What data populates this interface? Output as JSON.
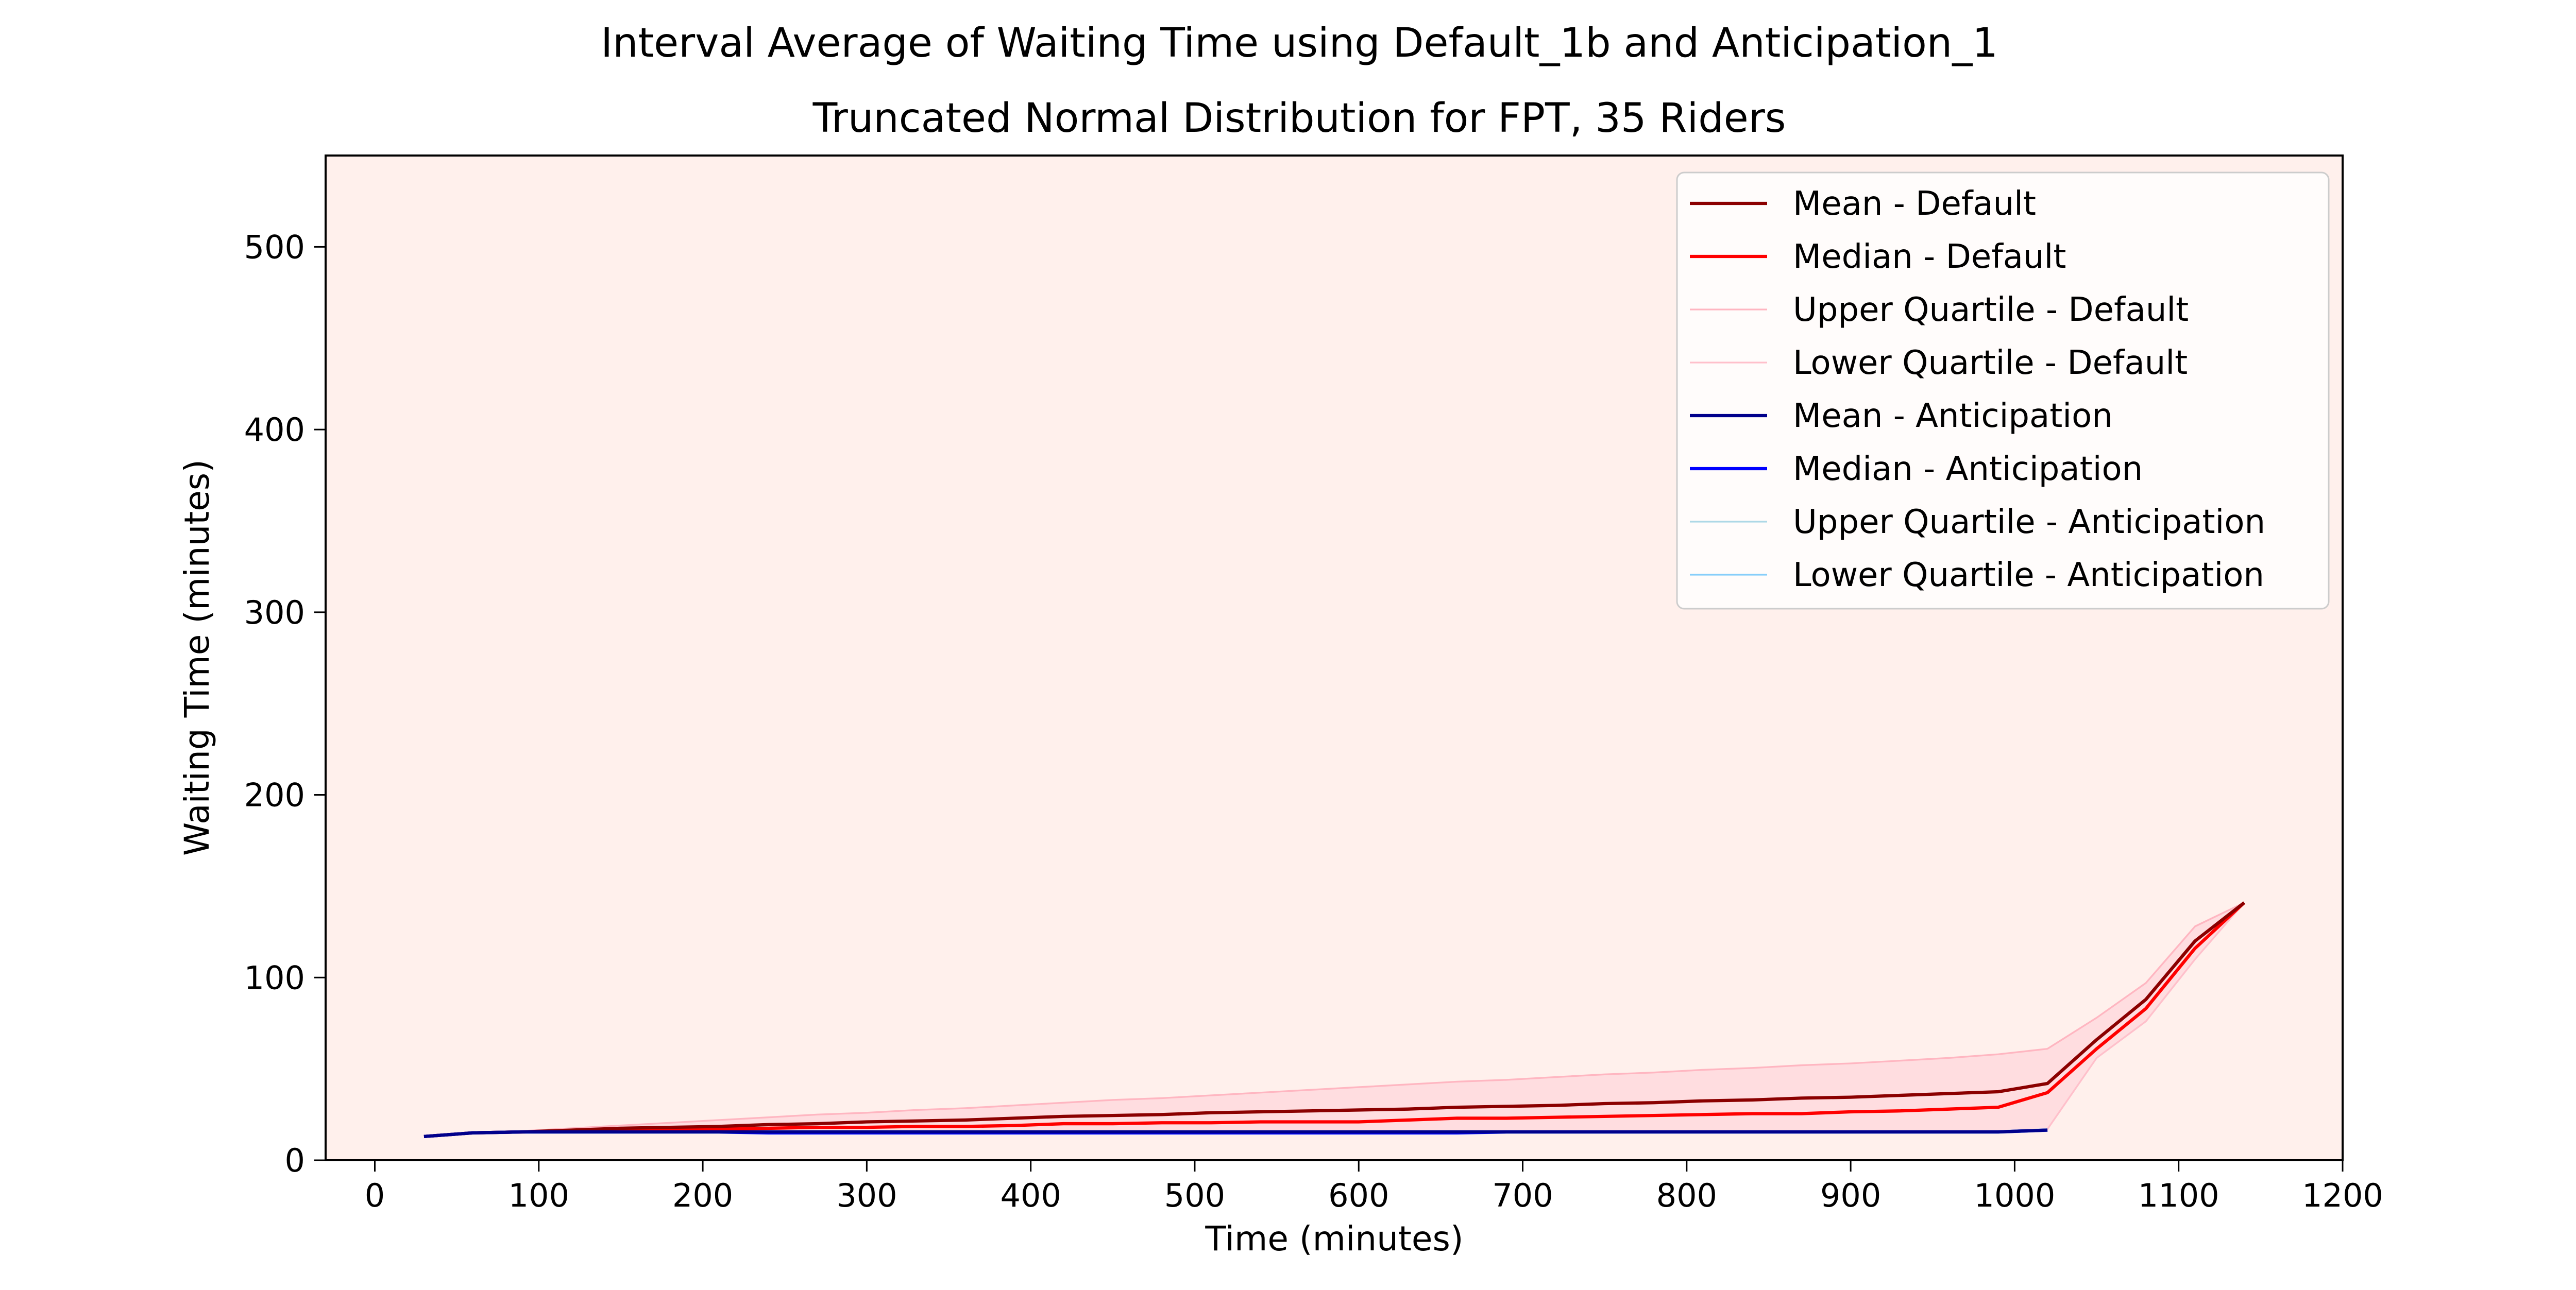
{
  "title": "Interval Average of Waiting Time using Default_1b and Anticipation_1",
  "subtitle": "Truncated Normal Distribution for FPT, 35 Riders",
  "chart_data": {
    "type": "line",
    "title": "Interval Average of Waiting Time using Default_1b and Anticipation_1",
    "subtitle": "Truncated Normal Distribution for FPT, 35 Riders",
    "xlabel": "Time (minutes)",
    "ylabel": "Waiting Time (minutes)",
    "xlim": [
      -30,
      1200
    ],
    "ylim": [
      0,
      550
    ],
    "xticks": [
      0,
      100,
      200,
      300,
      400,
      500,
      600,
      700,
      800,
      900,
      1000,
      1100,
      1200
    ],
    "yticks": [
      0,
      100,
      200,
      300,
      400,
      500
    ],
    "grid": false,
    "legend_position": "upper right",
    "background_color": "#fff0ec",
    "fill_default_color": "#ffdde0",
    "fill_anticipation_color": "#cfe6f5",
    "series": [
      {
        "name": "Mean - Default",
        "color": "#8b0000",
        "width": 1.5,
        "x": [
          30,
          60,
          90,
          120,
          150,
          180,
          210,
          240,
          270,
          300,
          330,
          360,
          390,
          420,
          450,
          480,
          510,
          540,
          570,
          600,
          630,
          660,
          690,
          720,
          750,
          780,
          810,
          840,
          870,
          900,
          930,
          960,
          990,
          1020,
          1050,
          1080,
          1110,
          1140
        ],
        "y": [
          13,
          15,
          15.5,
          16.5,
          17.5,
          18,
          18.5,
          19.5,
          20,
          21,
          21.5,
          22,
          23,
          24,
          24.5,
          25,
          26,
          26.5,
          27,
          27.5,
          28,
          29,
          29.5,
          30,
          31,
          31.5,
          32.5,
          33,
          34,
          34.5,
          35.5,
          36.5,
          37.5,
          42,
          66,
          88,
          120,
          141
        ]
      },
      {
        "name": "Median - Default",
        "color": "#ff0000",
        "width": 1.5,
        "x": [
          30,
          60,
          90,
          120,
          150,
          180,
          210,
          240,
          270,
          300,
          330,
          360,
          390,
          420,
          450,
          480,
          510,
          540,
          570,
          600,
          630,
          660,
          690,
          720,
          750,
          780,
          810,
          840,
          870,
          900,
          930,
          960,
          990,
          1020,
          1050,
          1080,
          1110,
          1140
        ],
        "y": [
          13,
          15,
          15.5,
          16,
          16.5,
          17,
          17,
          17.5,
          18,
          18,
          18.5,
          18.5,
          19,
          20,
          20,
          20.5,
          20.5,
          21,
          21,
          21,
          22,
          23,
          23,
          23.5,
          24,
          24.5,
          25,
          25.5,
          25.5,
          26.5,
          27,
          28,
          29,
          37,
          61,
          83,
          116,
          141
        ]
      },
      {
        "name": "Upper Quartile - Default",
        "color": "#ffb6c1",
        "width": 0.8,
        "x": [
          30,
          60,
          90,
          120,
          150,
          180,
          210,
          240,
          270,
          300,
          330,
          360,
          390,
          420,
          450,
          480,
          510,
          540,
          570,
          600,
          630,
          660,
          690,
          720,
          750,
          780,
          810,
          840,
          870,
          900,
          930,
          960,
          990,
          1020,
          1050,
          1080,
          1110,
          1140
        ],
        "y": [
          13,
          15,
          16,
          17.5,
          19,
          20.5,
          22,
          23.5,
          25,
          26,
          27.5,
          28.5,
          30,
          31.5,
          33,
          34,
          35.5,
          37,
          38.5,
          40,
          41.5,
          43,
          44,
          45.5,
          47,
          48,
          49.5,
          50.5,
          52,
          53,
          54.5,
          56,
          58,
          61,
          78,
          97,
          128,
          141
        ]
      },
      {
        "name": "Lower Quartile - Default",
        "color": "#ffc0cb",
        "width": 0.8,
        "x": [
          30,
          60,
          90,
          120,
          150,
          180,
          210,
          240,
          270,
          300,
          330,
          360,
          390,
          420,
          450,
          480,
          510,
          540,
          570,
          600,
          630,
          660,
          690,
          720,
          750,
          780,
          810,
          840,
          870,
          900,
          930,
          960,
          990,
          1020,
          1050,
          1080,
          1110,
          1140
        ],
        "y": [
          13,
          14.5,
          15,
          15,
          15,
          15,
          15,
          15,
          15,
          15,
          15,
          15,
          15,
          15,
          15,
          15,
          15,
          15,
          15,
          15,
          15,
          15,
          15,
          15,
          15,
          15,
          15,
          15,
          15,
          15,
          15,
          15,
          15,
          17,
          56,
          76,
          110,
          141
        ]
      },
      {
        "name": "Mean - Anticipation",
        "color": "#00008b",
        "width": 1.5,
        "x": [
          30,
          60,
          90,
          120,
          150,
          180,
          210,
          240,
          270,
          300,
          330,
          360,
          390,
          420,
          450,
          480,
          510,
          540,
          570,
          600,
          630,
          660,
          690,
          720,
          750,
          780,
          810,
          840,
          870,
          900,
          930,
          960,
          990,
          1020
        ],
        "y": [
          13,
          15,
          15.5,
          15.5,
          15.5,
          15.5,
          15.5,
          15.5,
          15.5,
          15.5,
          15.5,
          15.5,
          15.5,
          15.5,
          15.5,
          15.5,
          15.5,
          15.5,
          15.5,
          15.5,
          15.5,
          15.5,
          15.5,
          15.5,
          15.5,
          15.5,
          15.5,
          15.5,
          15.5,
          15.5,
          15.5,
          15.5,
          15.5,
          16.5
        ]
      },
      {
        "name": "Median - Anticipation",
        "color": "#0000ff",
        "width": 1.5,
        "x": [
          30,
          60,
          90,
          120,
          150,
          180,
          210,
          240,
          270,
          300,
          330,
          360,
          390,
          420,
          450,
          480,
          510,
          540,
          570,
          600,
          630,
          660,
          690,
          720,
          750,
          780,
          810,
          840,
          870,
          900,
          930,
          960,
          990,
          1020
        ],
        "y": [
          13,
          15,
          15.5,
          15.5,
          15.5,
          15.5,
          15.5,
          15,
          15,
          15,
          15,
          15,
          15,
          15,
          15,
          15,
          15,
          15,
          15,
          15,
          15,
          15,
          15.5,
          15.5,
          15.5,
          15.5,
          15.5,
          15.5,
          15.5,
          15.5,
          15.5,
          15.5,
          15.5,
          16.5
        ]
      },
      {
        "name": "Upper Quartile - Anticipation",
        "color": "#add8e6",
        "width": 0.8,
        "x": [
          30,
          60,
          90,
          120,
          150,
          180,
          210,
          240,
          270,
          300,
          330,
          360,
          390,
          420,
          450,
          480,
          510,
          540,
          570,
          600,
          630,
          660,
          690,
          720,
          750,
          780,
          810,
          840,
          870,
          900,
          930,
          960,
          990,
          1020
        ],
        "y": [
          13,
          15,
          15.5,
          16,
          16,
          16,
          16,
          16,
          16,
          16,
          16,
          16,
          16,
          16,
          16,
          16,
          16,
          16,
          16,
          16,
          16,
          16,
          16,
          16,
          16,
          16,
          16,
          16,
          16,
          16,
          16,
          16,
          16,
          17
        ]
      },
      {
        "name": "Lower Quartile - Anticipation",
        "color": "#87cefa",
        "width": 0.8,
        "x": [
          30,
          60,
          90,
          120,
          150,
          180,
          210,
          240,
          270,
          300,
          330,
          360,
          390,
          420,
          450,
          480,
          510,
          540,
          570,
          600,
          630,
          660,
          690,
          720,
          750,
          780,
          810,
          840,
          870,
          900,
          930,
          960,
          990,
          1020
        ],
        "y": [
          13,
          14.5,
          15,
          15,
          15,
          15,
          15,
          14.5,
          14.5,
          14.5,
          14.5,
          14.5,
          14.5,
          14.5,
          14.5,
          14.5,
          14.5,
          14.5,
          14.5,
          14.5,
          14.5,
          14.5,
          15,
          15,
          15,
          15,
          15,
          15,
          15,
          15,
          15,
          15,
          15,
          16
        ]
      }
    ]
  }
}
